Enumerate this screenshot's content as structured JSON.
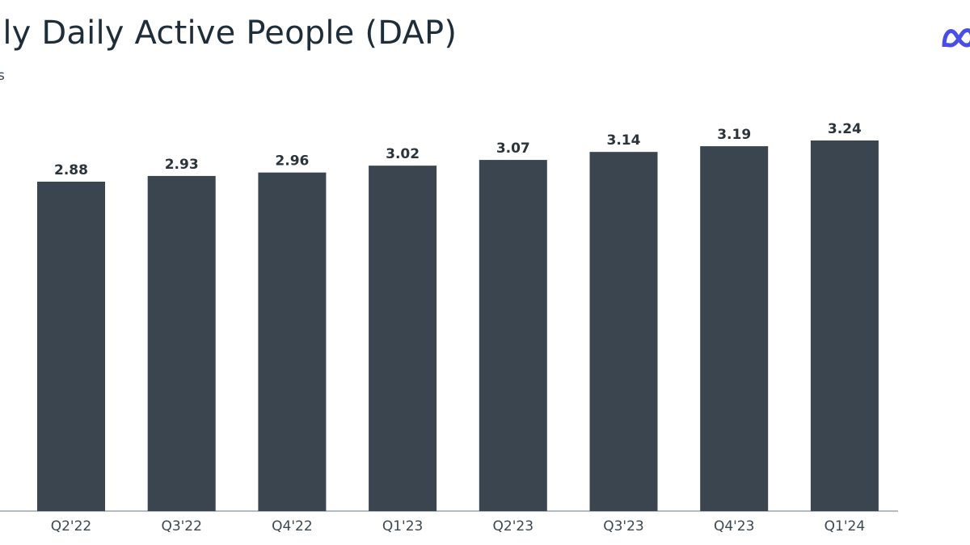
{
  "title": "ily Daily Active People (DAP)",
  "subtitle": "s",
  "logo": {
    "icon": "meta-infinity-icon",
    "color": "#4a4ee8"
  },
  "colors": {
    "bar": "#3a4550",
    "text": "#1f2d3a"
  },
  "chart_data": {
    "type": "bar",
    "categories": [
      "Q2'22",
      "Q3'22",
      "Q4'22",
      "Q1'23",
      "Q2'23",
      "Q3'23",
      "Q4'23",
      "Q1'24"
    ],
    "values": [
      2.88,
      2.93,
      2.96,
      3.02,
      3.07,
      3.14,
      3.19,
      3.24
    ],
    "value_labels": [
      "2.88",
      "2.93",
      "2.96",
      "3.02",
      "3.07",
      "3.14",
      "3.19",
      "3.24"
    ],
    "ylim": [
      0,
      3.24
    ],
    "grid": false,
    "legend": "none"
  }
}
